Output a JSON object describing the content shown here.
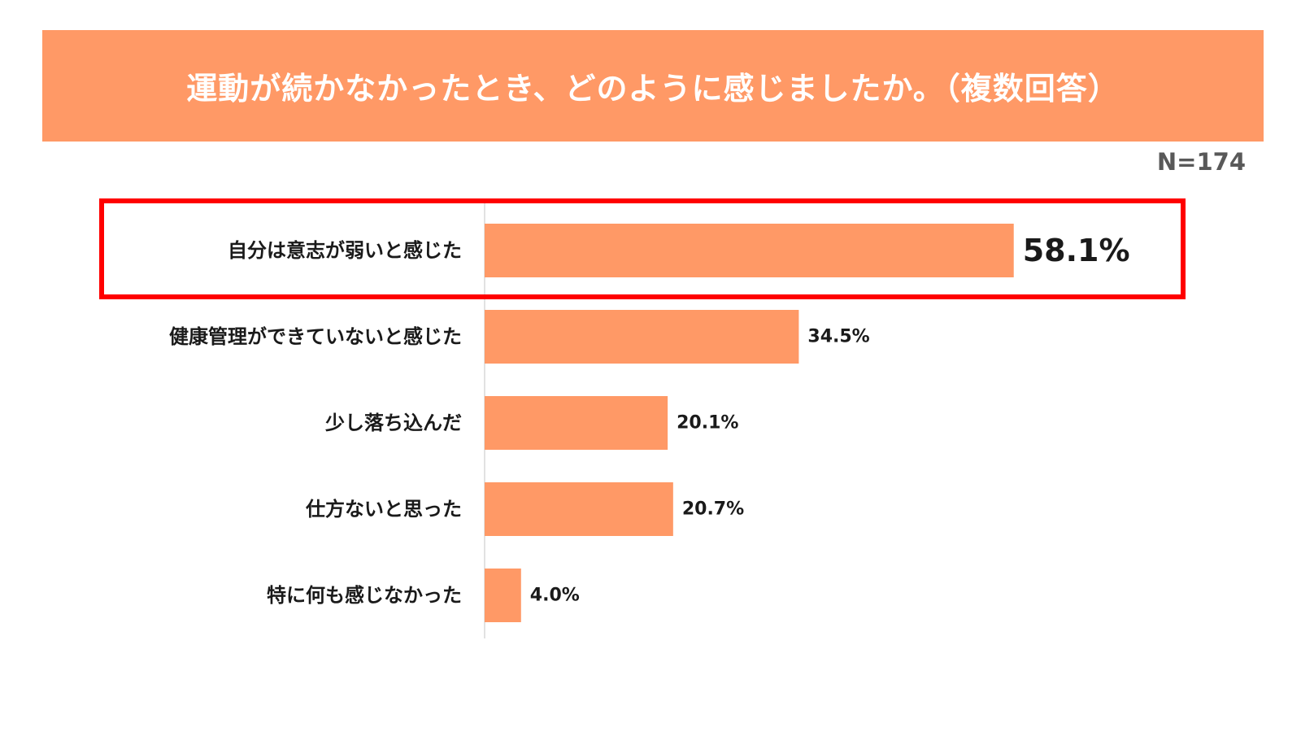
{
  "header": {
    "title": "運動が続かなかったとき、どのように感じましたか。（複数回答）",
    "banner_color": "#FF9966",
    "sample_size": "N=174"
  },
  "chart_data": {
    "type": "bar",
    "orientation": "horizontal",
    "categories": [
      "自分は意志が弱いと感じた",
      "健康管理ができていないと感じた",
      "少し落ち込んだ",
      "仕方ないと思った",
      "特に何も感じなかった"
    ],
    "values": [
      58.1,
      34.5,
      20.1,
      20.7,
      4.0
    ],
    "value_labels": [
      "58.1%",
      "34.5%",
      "20.1%",
      "20.7%",
      "4.0%"
    ],
    "xlim": [
      0,
      100
    ],
    "grid": false,
    "bar_color": "#FF9966",
    "axis_color": "#D9D9D9",
    "highlight_index": 0,
    "highlight_color": "#FF0000"
  }
}
